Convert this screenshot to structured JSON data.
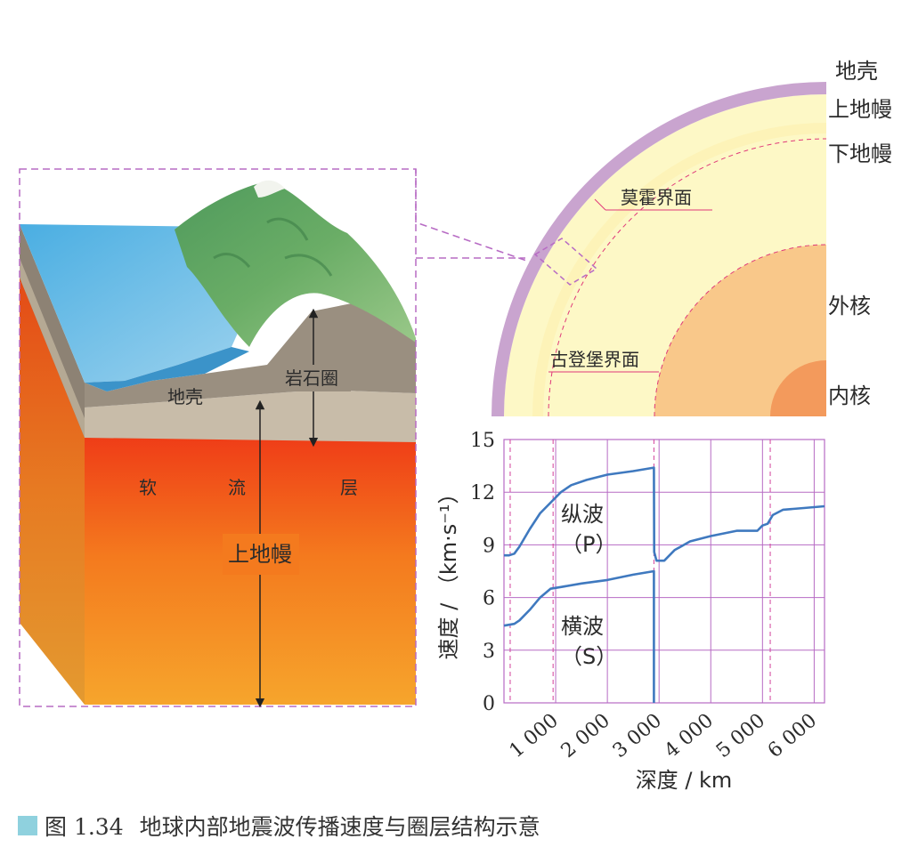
{
  "block_labels": {
    "crust": "地壳",
    "lithosphere": "岩石圈",
    "asthenosphere": [
      "软",
      "流",
      "层"
    ],
    "upper_mantle": "上地幔"
  },
  "quadrant_labels": {
    "crust": "地壳",
    "upper_mantle": "上地幔",
    "lower_mantle": "下地幔",
    "moho": "莫霍界面",
    "outer_core": "外核",
    "gutenberg": "古登堡界面",
    "inner_core": "内核"
  },
  "chart_data": {
    "type": "line",
    "xlabel": "深度 / km",
    "ylabel": "速度 / （km·s⁻¹）",
    "xlim": [
      0,
      6200
    ],
    "ylim": [
      0,
      15
    ],
    "xticks": [
      1000,
      2000,
      3000,
      4000,
      5000,
      6000
    ],
    "xtick_labels": [
      "1 000",
      "2 000",
      "3 000",
      "4 000",
      "5 000",
      "6 000"
    ],
    "yticks": [
      0,
      3,
      6,
      9,
      12,
      15
    ],
    "ytick_labels": [
      "0",
      "3",
      "6",
      "9",
      "12",
      "15"
    ],
    "grid": true,
    "boundaries": [
      120,
      950,
      2900,
      5150
    ],
    "series": [
      {
        "name": "纵波",
        "sub": "（P）",
        "x": [
          0,
          100,
          200,
          300,
          500,
          700,
          900,
          1100,
          1300,
          1600,
          2000,
          2500,
          2900,
          2905,
          2950,
          3100,
          3300,
          3600,
          4000,
          4500,
          4900,
          5000,
          5100,
          5200,
          5400,
          5800,
          6200
        ],
        "values": [
          8.4,
          8.4,
          8.5,
          8.9,
          9.9,
          10.8,
          11.4,
          12.0,
          12.4,
          12.7,
          13.0,
          13.2,
          13.4,
          8.6,
          8.1,
          8.1,
          8.7,
          9.2,
          9.5,
          9.8,
          9.8,
          10.1,
          10.2,
          10.7,
          11.0,
          11.1,
          11.2
        ]
      },
      {
        "name": "横波",
        "sub": "（S）",
        "x": [
          0,
          200,
          300,
          500,
          700,
          900,
          1100,
          1500,
          2000,
          2500,
          2900,
          2900
        ],
        "values": [
          4.4,
          4.5,
          4.7,
          5.3,
          6.0,
          6.5,
          6.6,
          6.8,
          7.0,
          7.3,
          7.5,
          0
        ]
      }
    ]
  },
  "caption": {
    "number": "图 1.34",
    "text": "地球内部地震波传播速度与圈层结构示意"
  }
}
